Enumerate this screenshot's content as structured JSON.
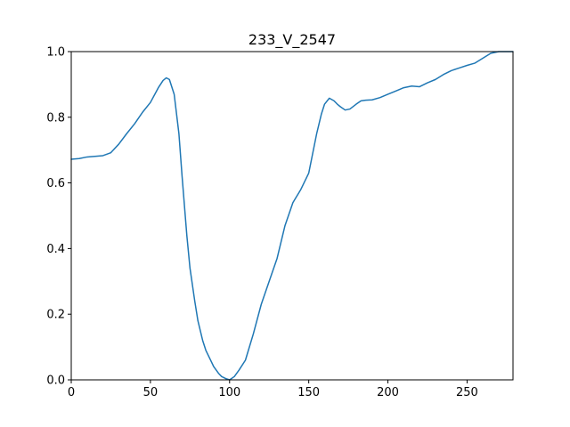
{
  "chart_data": {
    "type": "line",
    "title": "233_V_2547",
    "xlabel": "",
    "ylabel": "",
    "xlim": [
      0,
      279
    ],
    "ylim": [
      0.0,
      1.0
    ],
    "x_ticks": [
      0,
      50,
      100,
      150,
      200,
      250
    ],
    "y_ticks": [
      "0.0",
      "0.2",
      "0.4",
      "0.6",
      "0.8",
      "1.0"
    ],
    "grid": false,
    "line_color": "#1f77b4",
    "series": [
      {
        "x": [
          0,
          5,
          10,
          15,
          20,
          25,
          30,
          35,
          40,
          45,
          50,
          55,
          58,
          60,
          62,
          65,
          68,
          70,
          73,
          75,
          78,
          80,
          83,
          85,
          88,
          90,
          93,
          95,
          98,
          100,
          103,
          106,
          110,
          115,
          120,
          125,
          130,
          135,
          140,
          145,
          150,
          155,
          158,
          160,
          163,
          166,
          168,
          170,
          173,
          176,
          180,
          183,
          186,
          190,
          195,
          200,
          205,
          210,
          215,
          220,
          225,
          230,
          235,
          240,
          245,
          250,
          255,
          260,
          265,
          270,
          275,
          279
        ],
        "y": [
          0.672,
          0.674,
          0.679,
          0.681,
          0.683,
          0.692,
          0.718,
          0.75,
          0.78,
          0.815,
          0.845,
          0.89,
          0.912,
          0.92,
          0.915,
          0.87,
          0.75,
          0.62,
          0.44,
          0.34,
          0.24,
          0.18,
          0.12,
          0.09,
          0.06,
          0.04,
          0.02,
          0.01,
          0.003,
          0.0,
          0.01,
          0.03,
          0.06,
          0.14,
          0.23,
          0.3,
          0.37,
          0.47,
          0.54,
          0.58,
          0.63,
          0.75,
          0.81,
          0.84,
          0.858,
          0.85,
          0.84,
          0.832,
          0.822,
          0.825,
          0.84,
          0.85,
          0.852,
          0.853,
          0.86,
          0.87,
          0.88,
          0.89,
          0.895,
          0.893,
          0.905,
          0.915,
          0.93,
          0.942,
          0.95,
          0.958,
          0.965,
          0.98,
          0.995,
          1.0,
          1.0,
          1.0
        ]
      }
    ]
  }
}
